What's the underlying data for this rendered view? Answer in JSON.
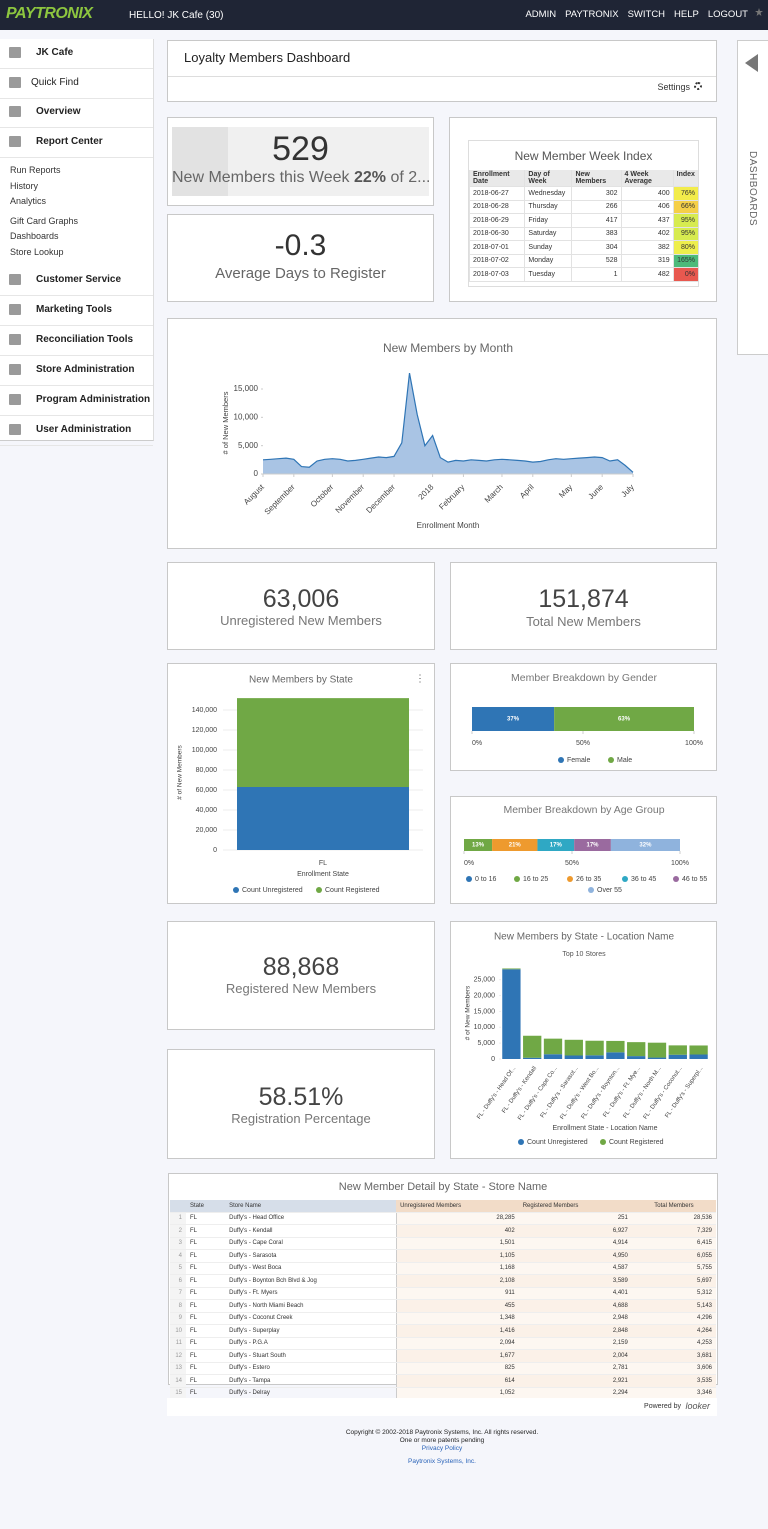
{
  "header": {
    "logo": "PAYTRONIX",
    "greeting": "HELLO! JK Cafe (30)",
    "nav": [
      "ADMIN",
      "PAYTRONIX",
      "SWITCH",
      "HELP",
      "LOGOUT"
    ]
  },
  "sidebar": {
    "top": [
      "JK Cafe",
      "Quick Find",
      "Overview",
      "Report Center"
    ],
    "links": [
      "Run Reports",
      "History",
      "Analytics",
      "Gift Card Graphs",
      "Dashboards",
      "Store Lookup"
    ],
    "bottom": [
      "Customer Service",
      "Marketing Tools",
      "Reconciliation Tools",
      "Store Administration",
      "Program Administration",
      "User Administration"
    ]
  },
  "right_tab": "DASHBOARDS",
  "dashboard": {
    "title": "Loyalty Members Dashboard",
    "settings": "Settings"
  },
  "new_week": {
    "value": "529",
    "label": "New Members this Week",
    "pct": "22%",
    "rest": "of 2..."
  },
  "avg_days": {
    "value": "-0.3",
    "label": "Average Days to Register"
  },
  "week_index": {
    "title": "New Member Week Index",
    "headers": [
      "Enrollment Date",
      "Day of Week",
      "New Members",
      "4 Week Average",
      "Index"
    ],
    "rows": [
      [
        "2018-06-27",
        "Wednesday",
        "302",
        "400",
        "76%"
      ],
      [
        "2018-06-28",
        "Thursday",
        "266",
        "406",
        "66%"
      ],
      [
        "2018-06-29",
        "Friday",
        "417",
        "437",
        "95%"
      ],
      [
        "2018-06-30",
        "Saturday",
        "383",
        "402",
        "95%"
      ],
      [
        "2018-07-01",
        "Sunday",
        "304",
        "382",
        "80%"
      ],
      [
        "2018-07-02",
        "Monday",
        "528",
        "319",
        "165%"
      ],
      [
        "2018-07-03",
        "Tuesday",
        "1",
        "482",
        "0%"
      ]
    ],
    "index_colors": [
      "#f2ec4b",
      "#f5cf48",
      "#d7eb50",
      "#d7eb50",
      "#eeee4c",
      "#4dba7a",
      "#e8584f"
    ]
  },
  "month_chart": {
    "type": "area",
    "title": "New Members by Month",
    "y_label": "# of New Members",
    "x_label": "Enrollment Month",
    "color": "#2f75b5",
    "fill": "#a9c4e4",
    "x": [
      0,
      1,
      2,
      3,
      4,
      5,
      6,
      7,
      8,
      9,
      10,
      11,
      12,
      13,
      14,
      15,
      16,
      17,
      18,
      19,
      20,
      21,
      22,
      23,
      24,
      25,
      26,
      27,
      28,
      29,
      30,
      31,
      32,
      33,
      34,
      35,
      36,
      37,
      38,
      39,
      40,
      41,
      42,
      43,
      44,
      45,
      46,
      47,
      48
    ],
    "values": [
      2500,
      2600,
      2700,
      2800,
      2600,
      1300,
      1200,
      2300,
      2600,
      2700,
      2600,
      2300,
      2400,
      2600,
      2800,
      3000,
      2900,
      3100,
      5500,
      17800,
      10500,
      5000,
      6800,
      2900,
      2100,
      2400,
      2300,
      2500,
      2400,
      2300,
      2500,
      2600,
      2500,
      2400,
      2300,
      2100,
      2200,
      2500,
      2700,
      2600,
      2700,
      2800,
      2900,
      3000,
      2900,
      2300,
      2500,
      1500,
      300
    ],
    "xlim": [
      0,
      48
    ],
    "xticks": [
      {
        "value": 0,
        "label": "August"
      },
      {
        "value": 4,
        "label": "September"
      },
      {
        "value": 9,
        "label": "October"
      },
      {
        "value": 13,
        "label": "November"
      },
      {
        "value": 17,
        "label": "December"
      },
      {
        "value": 22,
        "label": "2018"
      },
      {
        "value": 26,
        "label": "February"
      },
      {
        "value": 31,
        "label": "March"
      },
      {
        "value": 35,
        "label": "April"
      },
      {
        "value": 40,
        "label": "May"
      },
      {
        "value": 44,
        "label": "June"
      },
      {
        "value": 48,
        "label": "July"
      }
    ],
    "ylim": [
      0,
      18000
    ],
    "yticks": [
      0,
      {
        "value": 5000,
        "label": "5,000"
      },
      {
        "value": 10000,
        "label": "10,000"
      },
      {
        "value": 15000,
        "label": "15,000"
      }
    ],
    "grid": false
  },
  "unregistered": {
    "value": "63,006",
    "label": "Unregistered New Members"
  },
  "total": {
    "value": "151,874",
    "label": "Total New Members"
  },
  "state_chart": {
    "type": "stacked_bar",
    "title": "New Members by State",
    "y_label": "# of New Members",
    "x_label": "Enrollment State",
    "categories": [
      "FL"
    ],
    "series": [
      {
        "name": "Count Unregistered",
        "color": "#2f75b5",
        "values": [
          63006
        ]
      },
      {
        "name": "Count Registered",
        "color": "#70a845",
        "values": [
          88868
        ]
      }
    ],
    "ylim": [
      0,
      155000
    ],
    "yticks": [
      0,
      {
        "value": 20000,
        "label": "20,000"
      },
      {
        "value": 40000,
        "label": "40,000"
      },
      {
        "value": 60000,
        "label": "60,000"
      },
      {
        "value": 80000,
        "label": "80,000"
      },
      {
        "value": 100000,
        "label": "100,000"
      },
      {
        "value": 120000,
        "label": "120,000"
      },
      {
        "value": 140000,
        "label": "140,000"
      }
    ],
    "grid": true
  },
  "gender_chart": {
    "type": "stacked_hbar",
    "title": "Member Breakdown by Gender",
    "series": [
      {
        "name": "Female",
        "color": "#2f75b5",
        "values": [
          37
        ],
        "value_labels": [
          "37%"
        ]
      },
      {
        "name": "Male",
        "color": "#70a845",
        "values": [
          63
        ],
        "value_labels": [
          "63%"
        ]
      }
    ],
    "xlim": [
      0,
      100
    ],
    "xticks": [
      {
        "value": 0,
        "label": "0%"
      },
      {
        "value": 50,
        "label": "50%"
      },
      {
        "value": 100,
        "label": "100%"
      }
    ]
  },
  "age_chart": {
    "type": "stacked_hbar",
    "title": "Member Breakdown by Age Group",
    "series": [
      {
        "name": "0 to 16",
        "color": "#2f75b5",
        "values": [
          0
        ]
      },
      {
        "name": "16 to 25",
        "color": "#70a845",
        "values": [
          13
        ],
        "value_labels": [
          "13%"
        ]
      },
      {
        "name": "26 to 35",
        "color": "#ee9a2e",
        "values": [
          21
        ],
        "value_labels": [
          "21%"
        ]
      },
      {
        "name": "36 to 45",
        "color": "#2fa8c4",
        "values": [
          17
        ],
        "value_labels": [
          "17%"
        ]
      },
      {
        "name": "46 to 55",
        "color": "#9a6a9f",
        "values": [
          17
        ],
        "value_labels": [
          "17%"
        ]
      },
      {
        "name": "Over 55",
        "color": "#8fb3dd",
        "values": [
          32
        ],
        "value_labels": [
          "32%"
        ]
      }
    ],
    "xlim": [
      0,
      100
    ],
    "xticks": [
      {
        "value": 0,
        "label": "0%"
      },
      {
        "value": 50,
        "label": "50%"
      },
      {
        "value": 100,
        "label": "100%"
      }
    ]
  },
  "registered": {
    "value": "88,868",
    "label": "Registered New Members"
  },
  "reg_pct": {
    "value": "58.51%",
    "label": "Registration Percentage"
  },
  "location_chart": {
    "type": "stacked_bar",
    "title": "New Members by State - Location Name",
    "subtitle": "Top 10 Stores",
    "y_label": "# of New Members",
    "x_label": "Enrollment State - Location Name",
    "categories": [
      "FL - Duffy's - Head Of...",
      "FL - Duffy's - Kendall",
      "FL - Duffy's - Cape Co...",
      "FL - Duffy's - Sarasot...",
      "FL - Duffy's - West Bo...",
      "FL - Duffy's - Boynton...",
      "FL - Duffy's - Ft. Mye...",
      "FL - Duffy's - North M...",
      "FL - Duffy's - Coconut...",
      "FL - Duffy's - Superpl..."
    ],
    "series": [
      {
        "name": "Count Unregistered",
        "color": "#2f75b5",
        "values": [
          28285,
          402,
          1501,
          1105,
          1168,
          2108,
          911,
          455,
          1348,
          1416
        ]
      },
      {
        "name": "Count Registered",
        "color": "#70a845",
        "values": [
          251,
          6927,
          4914,
          4950,
          4587,
          3589,
          4401,
          4688,
          2948,
          2848
        ]
      }
    ],
    "ylim": [
      0,
      29000
    ],
    "yticks": [
      0,
      {
        "value": 5000,
        "label": "5,000"
      },
      {
        "value": 10000,
        "label": "10,000"
      },
      {
        "value": 15000,
        "label": "15,000"
      },
      {
        "value": 20000,
        "label": "20,000"
      },
      {
        "value": 25000,
        "label": "25,000"
      }
    ],
    "grid": false
  },
  "detail_table": {
    "title": "New Member Detail by State - Store Name",
    "headers": [
      "State",
      "Store Name",
      "Unregistered Members",
      "Registered Members",
      "Total Members"
    ],
    "row_numbers": [
      "1",
      "2",
      "3",
      "4",
      "5",
      "6",
      "7",
      "8",
      "9",
      "10",
      "11",
      "12",
      "13",
      "14",
      "15"
    ],
    "rows": [
      [
        "FL",
        "Duffy's - Head Office",
        "28,285",
        "251",
        "28,536"
      ],
      [
        "FL",
        "Duffy's - Kendall",
        "402",
        "6,927",
        "7,329"
      ],
      [
        "FL",
        "Duffy's - Cape Coral",
        "1,501",
        "4,914",
        "6,415"
      ],
      [
        "FL",
        "Duffy's - Sarasota",
        "1,105",
        "4,950",
        "6,055"
      ],
      [
        "FL",
        "Duffy's - West Boca",
        "1,168",
        "4,587",
        "5,755"
      ],
      [
        "FL",
        "Duffy's - Boynton Bch Blvd & Jog",
        "2,108",
        "3,589",
        "5,697"
      ],
      [
        "FL",
        "Duffy's - Ft. Myers",
        "911",
        "4,401",
        "5,312"
      ],
      [
        "FL",
        "Duffy's - North Miami Beach",
        "455",
        "4,688",
        "5,143"
      ],
      [
        "FL",
        "Duffy's - Coconut Creek",
        "1,348",
        "2,948",
        "4,296"
      ],
      [
        "FL",
        "Duffy's - Superplay",
        "1,416",
        "2,848",
        "4,264"
      ],
      [
        "FL",
        "Duffy's - P.G.A",
        "2,094",
        "2,159",
        "4,253"
      ],
      [
        "FL",
        "Duffy's - Stuart South",
        "1,677",
        "2,004",
        "3,681"
      ],
      [
        "FL",
        "Duffy's - Estero",
        "825",
        "2,781",
        "3,606"
      ],
      [
        "FL",
        "Duffy's - Tampa",
        "614",
        "2,921",
        "3,535"
      ],
      [
        "FL",
        "Duffy's - Delray",
        "1,052",
        "2,294",
        "3,346"
      ]
    ]
  },
  "footer": {
    "powered": "Powered by",
    "looker": "looker",
    "copyright": "Copyright © 2002-2018 Paytronix Systems, Inc. All rights reserved.",
    "patents": "One or more patents pending",
    "privacy": "Privacy Policy",
    "company": "Paytronix Systems, Inc."
  }
}
